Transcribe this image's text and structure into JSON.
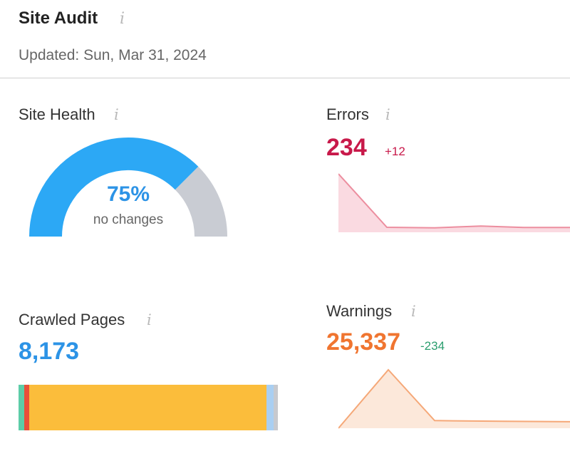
{
  "header": {
    "title": "Site Audit",
    "info_glyph": "i",
    "updated": "Updated: Sun, Mar 31, 2024"
  },
  "site_health": {
    "label": "Site Health",
    "info_glyph": "i",
    "value": "75%",
    "percent": 75,
    "subtext": "no changes",
    "colors": {
      "filled": "#2ca8f5",
      "rest": "#c9ccd3"
    }
  },
  "errors": {
    "label": "Errors",
    "info_glyph": "i",
    "value": "234",
    "delta": "+12",
    "color": "#c8194a",
    "delta_color": "#c8194a",
    "trend_note": "relative trend only; no axis printed",
    "trend": [
      234,
      20,
      18,
      25,
      19,
      19
    ]
  },
  "crawled_pages": {
    "label": "Crawled Pages",
    "info_glyph": "i",
    "value": "8,173",
    "color": "#2c93e6",
    "breakdown": [
      {
        "color": "#5ccda8",
        "share": 2.2
      },
      {
        "color": "#e8503a",
        "share": 2.0
      },
      {
        "color": "#fbbd3b",
        "share": 91.5
      },
      {
        "color": "#a9cff2",
        "share": 2.6
      },
      {
        "color": "#c7c9ce",
        "share": 1.7
      }
    ]
  },
  "warnings": {
    "label": "Warnings",
    "info_glyph": "i",
    "value": "25,337",
    "delta": "-234",
    "color": "#f07530",
    "delta_color": "#2a9d6e",
    "trend": [
      0,
      25337,
      3300,
      3000,
      2800
    ]
  },
  "icons": [
    "info-icon"
  ]
}
